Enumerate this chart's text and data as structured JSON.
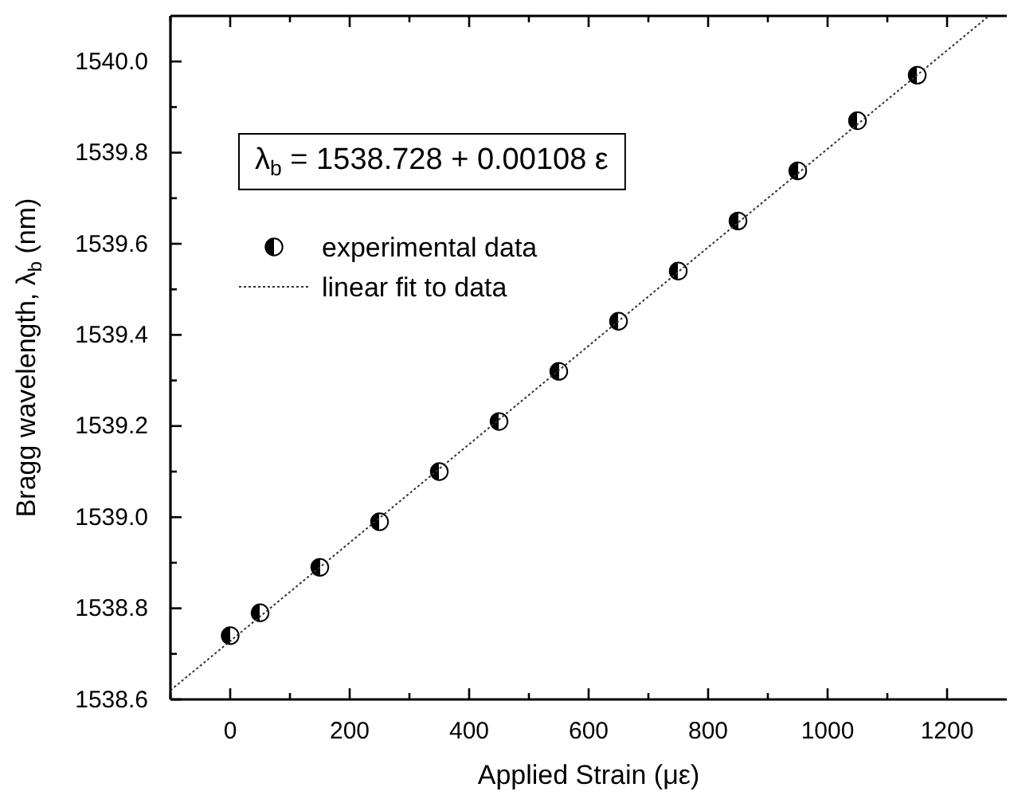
{
  "chart_data": {
    "type": "scatter",
    "xlabel": "Applied Strain (με)",
    "ylabel": "Bragg wavelength, λ$_{b}$ (nm)",
    "annotations": [
      "λ$_{b}$ = 1538.728 + 0.00108 ε"
    ],
    "xlim": [
      -100,
      1300
    ],
    "xticks": [
      {
        "value": -100,
        "label": null
      },
      0,
      {
        "value": 100,
        "label": null
      },
      200,
      {
        "value": 300,
        "label": null
      },
      400,
      {
        "value": 500,
        "label": null
      },
      600,
      {
        "value": 700,
        "label": null
      },
      800,
      {
        "value": 900,
        "label": null
      },
      1000,
      {
        "value": 1100,
        "label": null
      },
      1200
    ],
    "ylim": [
      1538.6,
      1540.1
    ],
    "yticks": [
      {
        "value": 1538.6,
        "label": "1538.6"
      },
      {
        "value": 1538.7,
        "label": null
      },
      {
        "value": 1538.8,
        "label": "1538.8"
      },
      {
        "value": 1538.9,
        "label": null
      },
      {
        "value": 1539.0,
        "label": "1539.0"
      },
      {
        "value": 1539.1,
        "label": null
      },
      {
        "value": 1539.2,
        "label": "1539.2"
      },
      {
        "value": 1539.3,
        "label": null
      },
      {
        "value": 1539.4,
        "label": "1539.4"
      },
      {
        "value": 1539.5,
        "label": null
      },
      {
        "value": 1539.6,
        "label": "1539.6"
      },
      {
        "value": 1539.7,
        "label": null
      },
      {
        "value": 1539.8,
        "label": "1539.8"
      },
      {
        "value": 1539.9,
        "label": null
      },
      {
        "value": 1540.0,
        "label": "1540.0"
      }
    ],
    "legend": "top left",
    "grid": false,
    "series": [
      {
        "name": "experimental data",
        "marker": "circle",
        "color": "#000000",
        "x": [
          0,
          50,
          150,
          250,
          350,
          450,
          550,
          650,
          750,
          850,
          950,
          1050,
          1150
        ],
        "values": [
          1538.74,
          1538.79,
          1538.89,
          1538.99,
          1539.1,
          1539.21,
          1539.32,
          1539.43,
          1539.54,
          1539.65,
          1539.76,
          1539.87,
          1539.97
        ]
      },
      {
        "name": "linear fit to data",
        "type": "line",
        "color": "#333333",
        "line_style": "dotted",
        "x": [
          -100,
          1270
        ],
        "values": [
          1538.62,
          1540.1
        ]
      }
    ]
  }
}
